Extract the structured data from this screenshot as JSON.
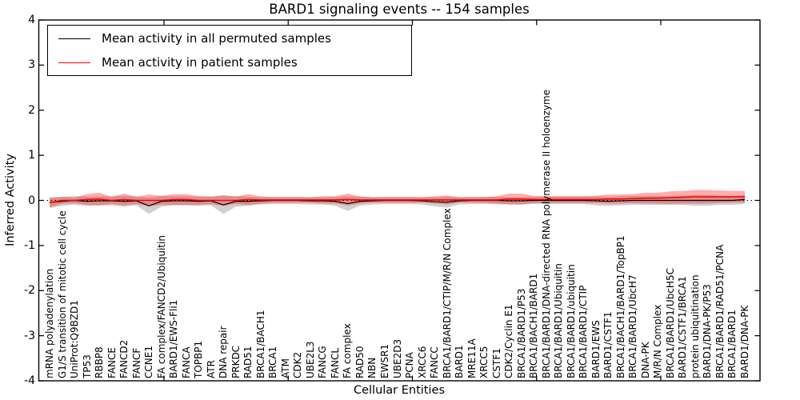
{
  "chart_data": {
    "type": "line",
    "title": "BARD1 signaling events -- 154 samples",
    "xlabel": "Cellular Entities",
    "ylabel": "Inferred Activity",
    "ylim": [
      -4,
      4
    ],
    "ytick_labels": [
      "4",
      "3",
      "2",
      "1",
      "0",
      "-1",
      "-2",
      "-3",
      "-4"
    ],
    "grid": false,
    "zero_line": true,
    "legend_position": "upper left",
    "categories": [
      "mRNA polyadenylation",
      "G1/S transition of mitotic cell cycle",
      "UniProt:Q9BZD1",
      "TP53",
      "RBBP8",
      "FANCE",
      "FANCD2",
      "FANCF",
      "CCNE1",
      "FA complex/FANCD2/Ubiquitin",
      "BARD1/EWS-Fli1",
      "FANCA",
      "TOPBP1",
      "ATR",
      "DNA repair",
      "PRKDC",
      "RAD51",
      "BRCA1/BACH1",
      "BRCA1",
      "ATM",
      "CDK2",
      "UBE2L3",
      "FANCG",
      "FANCL",
      "FA complex",
      "RAD50",
      "NBN",
      "EWSR1",
      "UBE2D3",
      "PCNA",
      "XRCC6",
      "FANCC",
      "BRCA1/BARD1/CTIP/M/R/N Complex",
      "BARD1",
      "MRE11A",
      "XRCC5",
      "CSTF1",
      "CDK2/Cyclin E1",
      "BRCA1/BARD1/P53",
      "BRCA1/BACH1/BARD1",
      "BRCA1/BARD1/DNA-directed RNA polymerase II holoenzyme",
      "BRCA1/BARD1/Ubiquitin",
      "BRCA1/BARD1/ubiquitin",
      "BRCA1/BARD1/CTIP",
      "BARD1/EWS",
      "BARD1/CSTF1",
      "BRCA1/BACH1/BARD1/TopBP1",
      "BRCA1/BARD1/UbcH7",
      "DNA-PK",
      "M/R/N Complex",
      "BRCA1/BARD1/UbcH5C",
      "BARD1/CSTF1/BRCA1",
      "protein ubiquitination",
      "BARD1/DNA-PK/P53",
      "BRCA1/BARD1/RAD51/PCNA",
      "BRCA1/BARD1",
      "BARD1/DNA-PK"
    ],
    "series": [
      {
        "name": "Mean activity in all permuted samples",
        "color": "#000000",
        "band_color": "rgba(100,100,100,0.30)",
        "values": [
          -0.05,
          -0.02,
          0,
          -0.02,
          -0.01,
          -0.01,
          -0.02,
          -0.01,
          -0.12,
          -0.02,
          -0.01,
          -0.01,
          -0.02,
          -0.01,
          -0.1,
          -0.02,
          -0.02,
          -0.01,
          0,
          0,
          0,
          -0.01,
          -0.01,
          -0.02,
          -0.07,
          -0.02,
          -0.01,
          0,
          0,
          0,
          -0.01,
          -0.03,
          -0.04,
          -0.01,
          0,
          0,
          0,
          -0.01,
          -0.01,
          0,
          0,
          0,
          0,
          0,
          -0.01,
          -0.02,
          -0.01,
          0,
          0,
          0,
          0,
          0,
          0,
          0,
          0,
          0,
          0.02
        ],
        "band": [
          0.12,
          0.1,
          0.1,
          0.1,
          0.1,
          0.1,
          0.12,
          0.1,
          0.18,
          0.12,
          0.1,
          0.1,
          0.1,
          0.1,
          0.2,
          0.12,
          0.1,
          0.08,
          0.08,
          0.08,
          0.08,
          0.08,
          0.08,
          0.1,
          0.16,
          0.1,
          0.08,
          0.08,
          0.08,
          0.08,
          0.08,
          0.1,
          0.12,
          0.08,
          0.08,
          0.08,
          0.08,
          0.08,
          0.08,
          0.08,
          0.08,
          0.08,
          0.08,
          0.08,
          0.1,
          0.1,
          0.1,
          0.1,
          0.1,
          0.1,
          0.1,
          0.1,
          0.12,
          0.12,
          0.1,
          0.1,
          0.1
        ]
      },
      {
        "name": "Mean activity in patient samples",
        "color": "#ff0000",
        "band_color": "rgba(255,0,0,0.32)",
        "values": [
          -0.05,
          0,
          0,
          0.02,
          0.03,
          0,
          0.02,
          0,
          0,
          0,
          0.02,
          0.02,
          0,
          0,
          0,
          0,
          0.02,
          0.01,
          0.01,
          0.01,
          0.01,
          0.01,
          0.01,
          0.01,
          0.02,
          0.01,
          0.01,
          0.01,
          0.01,
          0.01,
          0.01,
          0.01,
          0.01,
          0.01,
          0.01,
          0.01,
          0.01,
          0.03,
          0.03,
          0.02,
          0.02,
          0.02,
          0.02,
          0.02,
          0.02,
          0.03,
          0.03,
          0.04,
          0.05,
          0.05,
          0.06,
          0.07,
          0.08,
          0.08,
          0.08,
          0.08,
          0.08
        ],
        "band": [
          0.1,
          0.08,
          0.06,
          0.12,
          0.14,
          0.08,
          0.13,
          0.08,
          0.13,
          0.1,
          0.12,
          0.12,
          0.1,
          0.08,
          0.12,
          0.08,
          0.12,
          0.08,
          0.06,
          0.06,
          0.06,
          0.06,
          0.08,
          0.08,
          0.13,
          0.08,
          0.06,
          0.06,
          0.06,
          0.06,
          0.06,
          0.08,
          0.1,
          0.06,
          0.06,
          0.06,
          0.08,
          0.12,
          0.12,
          0.08,
          0.08,
          0.08,
          0.08,
          0.08,
          0.08,
          0.1,
          0.1,
          0.1,
          0.12,
          0.12,
          0.14,
          0.14,
          0.15,
          0.15,
          0.14,
          0.13,
          0.13
        ]
      }
    ]
  }
}
